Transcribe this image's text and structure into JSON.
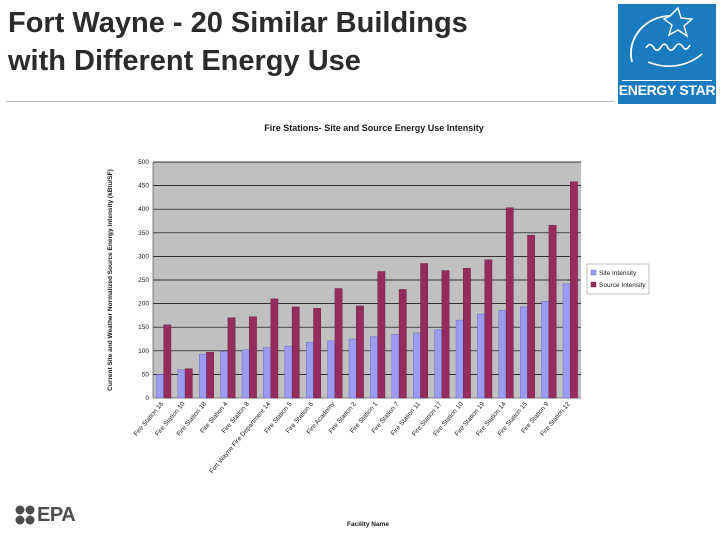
{
  "slide": {
    "title_line1": "Fort Wayne - 20 Similar Buildings",
    "title_line2": "with Different Energy Use",
    "logo_text": "ENERGY STAR",
    "footer_logo_text": "EPA"
  },
  "colors": {
    "site": "#9b9bf2",
    "source": "#962c5e",
    "plot_bg": "#c0c0c0",
    "energy_star_blue": "#1b7bbf"
  },
  "chart_data": {
    "type": "bar",
    "title": "Fire Stations- Site and Source Energy Use Intensity",
    "xlabel": "Facility Name",
    "ylabel": "Current Site and Weather Normalized Source Energy Intensity (kBtu/SF)",
    "ylim": [
      0,
      500
    ],
    "yticks": [
      0,
      50,
      100,
      150,
      200,
      250,
      300,
      350,
      400,
      450,
      500
    ],
    "ytick_labels": [
      "0",
      "50",
      "100",
      "150",
      "200",
      "250",
      "300",
      "350",
      "400",
      "450",
      "500"
    ],
    "grid": true,
    "legend_position": "right",
    "categories": [
      "Fire Station 16",
      "Fire Station 10",
      "Fire Station 18",
      "Fire Station 4",
      "Fire Station 8",
      "Fort Wayne Fire Department 14",
      "Fire Station 5",
      "Fire Station 6",
      "Fire Academy",
      "Fire Station 2",
      "Fire Station 1",
      "Fire Station 7",
      "Fire Station 11",
      "Fire Station 17",
      "Fire Station 10",
      "Fire Station 19",
      "Fire Station 14",
      "Fire Station 15",
      "Fire Station 9",
      "Fire Station 12"
    ],
    "series": [
      {
        "name": "Site Intensity",
        "values": [
          50,
          60,
          93,
          98,
          102,
          107,
          110,
          118,
          121,
          125,
          130,
          135,
          138,
          145,
          165,
          178,
          186,
          193,
          205,
          242
        ]
      },
      {
        "name": "Source Intensity",
        "values": [
          155,
          62,
          97,
          170,
          172,
          210,
          193,
          190,
          232,
          195,
          268,
          230,
          285,
          270,
          275,
          293,
          403,
          345,
          366,
          458
        ]
      }
    ]
  }
}
